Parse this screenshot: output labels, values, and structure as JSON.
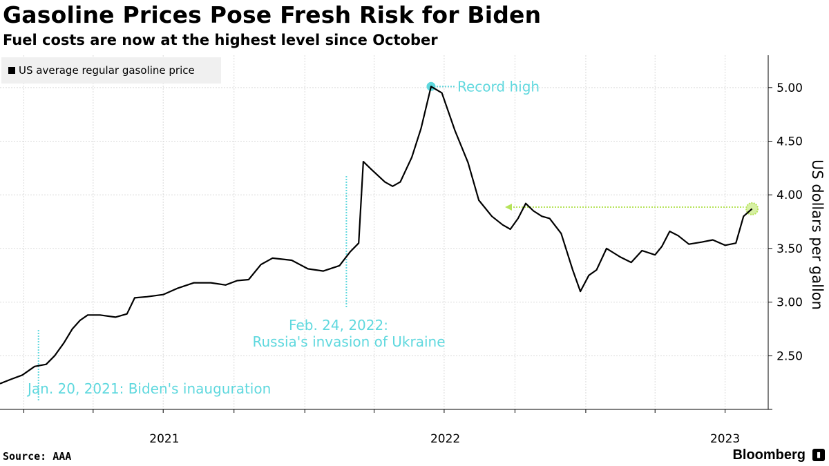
{
  "chart_data": {
    "type": "line",
    "title": "Gasoline Prices Pose Fresh Risk for Biden",
    "subtitle": "Fuel costs are now at the highest level since October",
    "legend": "US average regular gasoline price",
    "ylabel": "US dollars per gallon",
    "ylim": [
      2.0,
      5.25
    ],
    "yticks": [
      "2.50",
      "3.00",
      "3.50",
      "4.00",
      "4.50",
      "5.00"
    ],
    "xticks": [
      "2021",
      "2022",
      "2023"
    ],
    "series": [
      {
        "name": "US average regular gasoline price",
        "points": [
          [
            "2020-12-01",
            2.24
          ],
          [
            "2020-12-15",
            2.28
          ],
          [
            "2020-12-30",
            2.32
          ],
          [
            "2021-01-15",
            2.4
          ],
          [
            "2021-01-30",
            2.42
          ],
          [
            "2021-02-10",
            2.5
          ],
          [
            "2021-02-22",
            2.62
          ],
          [
            "2021-03-05",
            2.75
          ],
          [
            "2021-03-15",
            2.83
          ],
          [
            "2021-03-25",
            2.88
          ],
          [
            "2021-04-10",
            2.88
          ],
          [
            "2021-04-30",
            2.86
          ],
          [
            "2021-05-15",
            2.89
          ],
          [
            "2021-05-25",
            3.04
          ],
          [
            "2021-06-10",
            3.05
          ],
          [
            "2021-07-01",
            3.07
          ],
          [
            "2021-07-20",
            3.13
          ],
          [
            "2021-08-10",
            3.18
          ],
          [
            "2021-09-01",
            3.18
          ],
          [
            "2021-09-20",
            3.16
          ],
          [
            "2021-10-05",
            3.2
          ],
          [
            "2021-10-20",
            3.21
          ],
          [
            "2021-11-05",
            3.35
          ],
          [
            "2021-11-20",
            3.41
          ],
          [
            "2021-12-15",
            3.39
          ],
          [
            "2022-01-05",
            3.31
          ],
          [
            "2022-01-25",
            3.29
          ],
          [
            "2022-02-15",
            3.34
          ],
          [
            "2022-03-01",
            3.47
          ],
          [
            "2022-03-12",
            3.55
          ],
          [
            "2022-03-18",
            4.31
          ],
          [
            "2022-03-28",
            4.24
          ],
          [
            "2022-04-15",
            4.12
          ],
          [
            "2022-04-25",
            4.08
          ],
          [
            "2022-05-05",
            4.12
          ],
          [
            "2022-05-20",
            4.35
          ],
          [
            "2022-06-01",
            4.62
          ],
          [
            "2022-06-14",
            5.01
          ],
          [
            "2022-06-28",
            4.95
          ],
          [
            "2022-07-15",
            4.6
          ],
          [
            "2022-08-01",
            4.3
          ],
          [
            "2022-08-15",
            3.95
          ],
          [
            "2022-09-01",
            3.8
          ],
          [
            "2022-09-15",
            3.72
          ],
          [
            "2022-09-25",
            3.68
          ],
          [
            "2022-10-05",
            3.78
          ],
          [
            "2022-10-15",
            3.92
          ],
          [
            "2022-10-25",
            3.85
          ],
          [
            "2022-11-05",
            3.8
          ],
          [
            "2022-11-15",
            3.78
          ],
          [
            "2022-11-30",
            3.64
          ],
          [
            "2022-12-15",
            3.3
          ],
          [
            "2022-12-25",
            3.1
          ],
          [
            "2023-01-05",
            3.25
          ],
          [
            "2023-01-15",
            3.3
          ],
          [
            "2023-01-28",
            3.5
          ],
          [
            "2023-02-15",
            3.42
          ],
          [
            "2023-03-01",
            3.37
          ],
          [
            "2023-03-15",
            3.48
          ],
          [
            "2023-04-01",
            3.44
          ],
          [
            "2023-04-10",
            3.52
          ],
          [
            "2023-04-20",
            3.66
          ],
          [
            "2023-05-01",
            3.62
          ],
          [
            "2023-05-15",
            3.54
          ],
          [
            "2023-06-01",
            3.56
          ],
          [
            "2023-06-15",
            3.58
          ],
          [
            "2023-07-01",
            3.53
          ],
          [
            "2023-07-15",
            3.55
          ],
          [
            "2023-07-25",
            3.8
          ],
          [
            "2023-08-05",
            3.87
          ]
        ]
      }
    ],
    "annotations": [
      {
        "date": "2021-01-20",
        "label": "Jan. 20, 2021: Biden's inauguration"
      },
      {
        "date": "2022-02-24",
        "label_line1": "Feb. 24, 2022:",
        "label_line2": "Russia's invasion of Ukraine"
      },
      {
        "date": "2022-06-14",
        "value": 5.01,
        "label": "Record high"
      },
      {
        "date": "2023-08-05",
        "value": 3.87,
        "note": "highest level since October"
      }
    ],
    "colors": {
      "line": "#000000",
      "annotation": "#5fd8de",
      "highlight": "#b6e35a",
      "grid": "#d9d9d9"
    }
  },
  "footer": {
    "source": "Source: AAA",
    "brand": "Bloomberg"
  }
}
